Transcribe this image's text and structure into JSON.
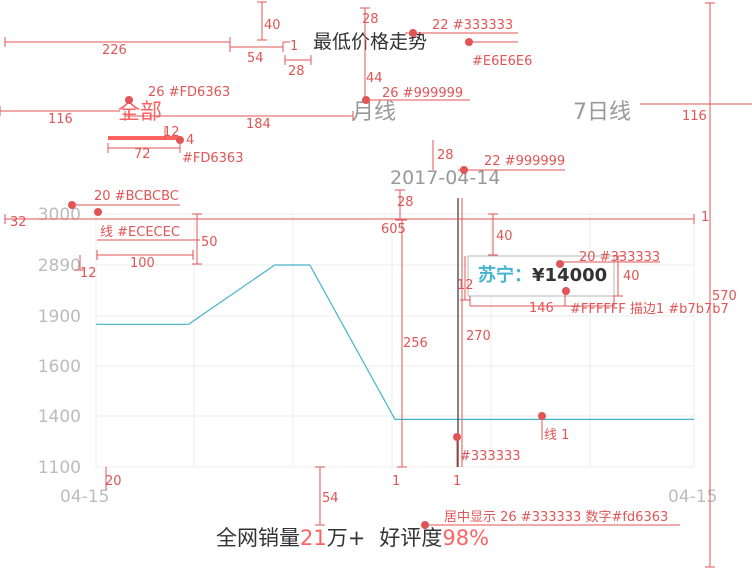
{
  "header": {
    "title": "最低价格走势"
  },
  "tabs": [
    {
      "label": "全部",
      "active": true
    },
    {
      "label": "月线",
      "active": false
    },
    {
      "label": "7日线",
      "active": false
    }
  ],
  "tooltip": {
    "date": "2017-04-14",
    "store": "苏宁",
    "sep": "：",
    "price": "¥14000"
  },
  "footer": {
    "prefix": "全网销量",
    "sales_num": "21",
    "sales_unit": "万+",
    "praise_label": "好评度",
    "praise_value": "98%"
  },
  "annotations": {
    "w226": "226",
    "w54": "54",
    "w1a": "1",
    "w28a": "28",
    "w40a": "40",
    "w28b": "28",
    "title_spec": "22 #333333",
    "title_line_color": "#E6E6E6",
    "w44": "44",
    "inactive_spec": "26 #999999",
    "active_spec": "26 #FD6363",
    "w116a": "116",
    "w184": "184",
    "w116b": "116",
    "w12a": "12",
    "w4": "4",
    "w72": "72",
    "underline_color": "#FD6363",
    "w28c": "28",
    "date_spec": "22 #999999",
    "w32": "32",
    "axis_spec": "20 #BCBCBC",
    "grid_spec": "线 #ECECEC",
    "w28d": "28",
    "w605": "605",
    "w1b": "1",
    "w50": "50",
    "w100": "100",
    "w12b": "12",
    "w40b": "40",
    "tip_spec": "20 #333333",
    "w12c": "12",
    "w40c": "40",
    "w146": "146",
    "tip_box_spec": "#FFFFFF 描边1 #b7b7b7",
    "w256": "256",
    "w270": "270",
    "line_label": "线 1",
    "marker_color": "#333333",
    "w20": "20",
    "w54b": "54",
    "w1c": "1",
    "w1d": "1",
    "footer_spec": "居中显示 26 #333333 数字#fd6363",
    "w570": "570"
  },
  "chart_data": {
    "type": "line",
    "x_start_label": "04-15",
    "x_end_label": "04-15",
    "x": [
      0,
      1,
      1.93,
      2.31,
      3.23,
      3.5,
      5.1,
      6.46
    ],
    "y": [
      1850,
      1850,
      2890,
      2890,
      1380,
      1380,
      1380,
      1380
    ],
    "yticks": [
      3000,
      2890,
      1900,
      1600,
      1400,
      1100
    ],
    "y_scale": "categorical-ticks",
    "xlim": [
      0,
      6.46
    ],
    "line_color": "#44B3CC",
    "grid": true,
    "cursor_x": 3.43
  }
}
